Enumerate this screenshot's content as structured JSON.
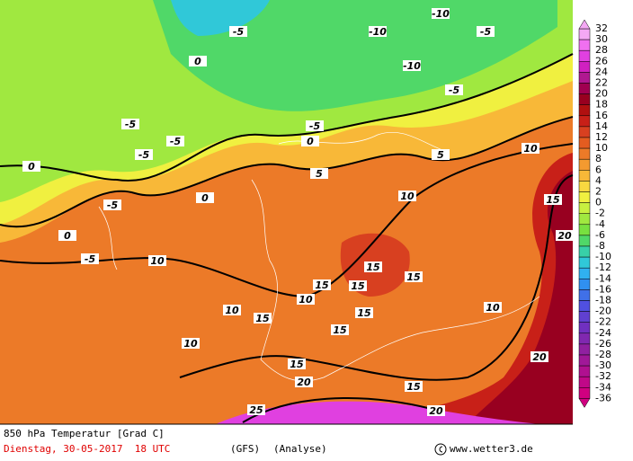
{
  "map": {
    "title": "850 hPa Temperatur [Grad C]",
    "date": "Dienstag, 30-05-2017  18 UTC",
    "model": "(GFS)",
    "run": "(Analyse)",
    "credit": "www.wetter3.de",
    "contour_labels": [
      "-10",
      "-10",
      "-10",
      "-5",
      "-5",
      "-5",
      "-5",
      "-5",
      "-5",
      "-5",
      "-5",
      "-5",
      "0",
      "0",
      "0",
      "0",
      "0",
      "5",
      "5",
      "10",
      "10",
      "10",
      "10",
      "10",
      "10",
      "10",
      "15",
      "15",
      "15",
      "15",
      "15",
      "15",
      "15",
      "15",
      "15",
      "15",
      "20",
      "20",
      "20",
      "20",
      "25"
    ],
    "legend": {
      "labels": [
        "32",
        "30",
        "28",
        "26",
        "24",
        "22",
        "20",
        "18",
        "16",
        "14",
        "12",
        "10",
        "8",
        "6",
        "4",
        "2",
        "0",
        "-2",
        "-4",
        "-6",
        "-8",
        "-10",
        "-12",
        "-14",
        "-16",
        "-18",
        "-20",
        "-22",
        "-24",
        "-26",
        "-28",
        "-30",
        "-32",
        "-34",
        "-36"
      ],
      "colors": [
        "#f4a8f4",
        "#f070f0",
        "#e040e0",
        "#d020c0",
        "#b01890",
        "#a00050",
        "#980020",
        "#b01010",
        "#c82018",
        "#d84020",
        "#e45c20",
        "#ec7a28",
        "#f49a30",
        "#f8b838",
        "#f8d840",
        "#f0f040",
        "#c8f040",
        "#a0e840",
        "#78e040",
        "#50d868",
        "#38d0a8",
        "#30c8d8",
        "#30b0f0",
        "#3090f0",
        "#4070e8",
        "#5050e0",
        "#6040d0",
        "#7030c0",
        "#8028b0",
        "#9020a0",
        "#a01898",
        "#b01090",
        "#c00888",
        "#d00080"
      ]
    }
  }
}
